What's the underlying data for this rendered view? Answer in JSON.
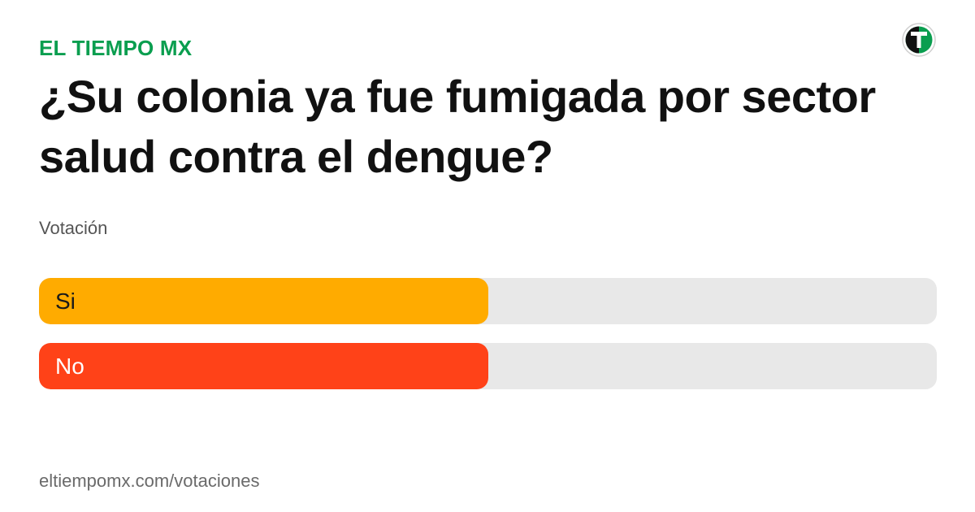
{
  "brand": {
    "name": "EL TIEMPO MX",
    "color": "#0a9e4f",
    "logo_icon": "el-tiempo-logo-icon"
  },
  "poll": {
    "question": "¿Su colonia ya fue fumigada por sector salud contra el dengue?",
    "subtitle": "Votación",
    "options": [
      {
        "label": "Si",
        "fill_fraction": 0.5,
        "color": "#ffab00",
        "text_color": "#1a1a1a"
      },
      {
        "label": "No",
        "fill_fraction": 0.5,
        "color": "#ff4218",
        "text_color": "#ffffff"
      }
    ]
  },
  "footer": {
    "url": "eltiempomx.com/votaciones"
  }
}
